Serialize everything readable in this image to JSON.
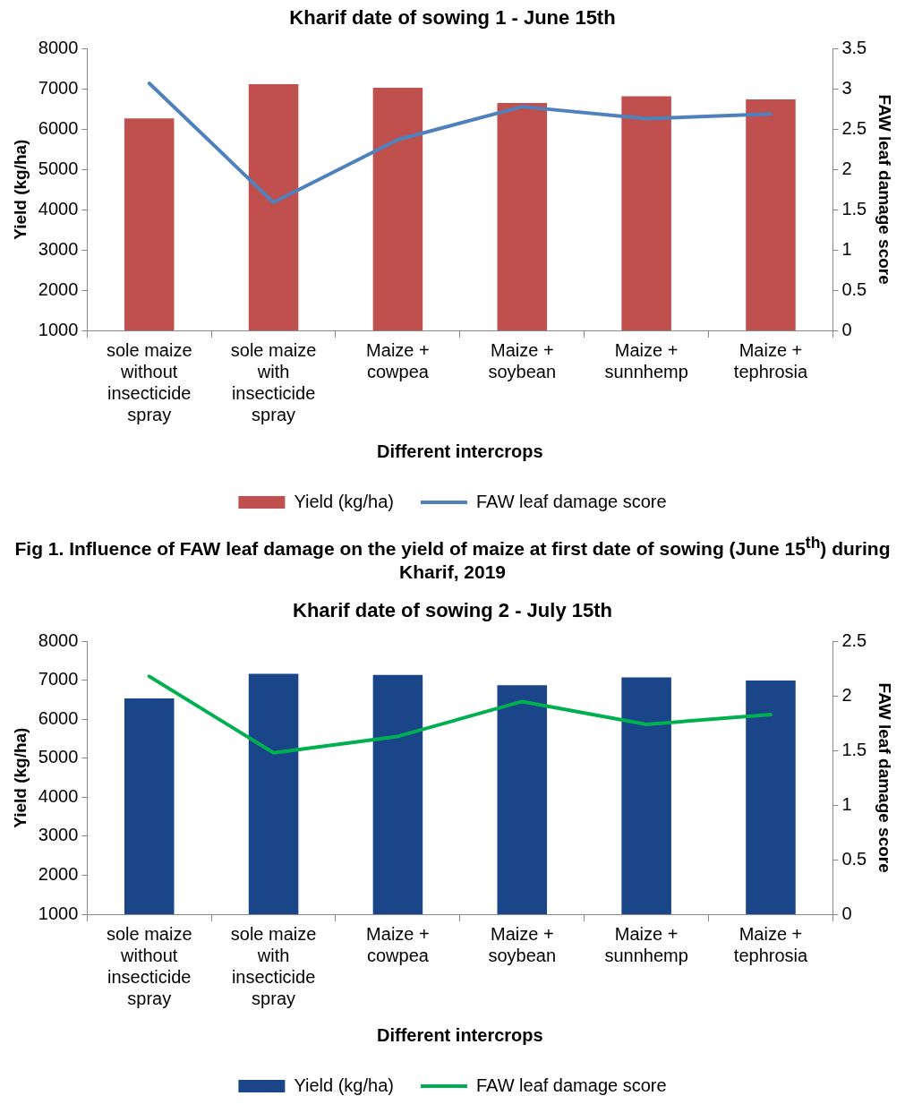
{
  "chart_data": [
    {
      "type": "bar",
      "title": "Kharif date of sowing 1 - June 15th",
      "xlabel": "Different intercrops",
      "ylabel": "Yield (kg/ha)",
      "y2label": "FAW leaf damage score",
      "categories": [
        "sole maize without insecticide spray",
        "sole maize with insecticide spray",
        "Maize + cowpea",
        "Maize + soybean",
        "Maize + sunnhemp",
        "Maize + tephrosia"
      ],
      "series": [
        {
          "name": "Yield (kg/ha)",
          "color": "#c0504d",
          "values": [
            6270,
            7120,
            7030,
            6650,
            6820,
            6740
          ]
        },
        {
          "name": "FAW leaf damage score",
          "type": "line",
          "axis": "y2",
          "color": "#4f81bd",
          "values": [
            3.07,
            1.59,
            2.37,
            2.78,
            2.63,
            2.69
          ]
        }
      ],
      "ylim": [
        1000,
        8000
      ],
      "yticks": [
        1000,
        2000,
        3000,
        4000,
        5000,
        6000,
        7000,
        8000
      ],
      "y2lim": [
        0,
        3.5
      ],
      "y2ticks": [
        0,
        0.5,
        1,
        1.5,
        2,
        2.5,
        3,
        3.5
      ],
      "legend": "bottom",
      "grid": false,
      "marker": "none",
      "annotations": [
        "Fig 1. Influence of FAW leaf damage on the yield of maize at first date of sowing (June 15$^{th}$) during Kharif, 2019"
      ]
    },
    {
      "type": "bar",
      "title": "Kharif date of sowing 2 - July 15th",
      "xlabel": "Different intercrops",
      "ylabel": "Yield (kg/ha)",
      "y2label": "FAW leaf damage score",
      "categories": [
        "sole maize without insecticide spray",
        "sole maize with insecticide spray",
        "Maize + cowpea",
        "Maize + soybean",
        "Maize + sunnhemp",
        "Maize + tephrosia"
      ],
      "series": [
        {
          "name": "Yield (kg/ha)",
          "color": "#1a4588",
          "values": [
            6540,
            7170,
            7140,
            6880,
            7080,
            7000
          ]
        },
        {
          "name": "FAW leaf damage score",
          "type": "line",
          "axis": "y2",
          "color": "#00b050",
          "values": [
            2.18,
            1.48,
            1.63,
            1.95,
            1.74,
            1.83
          ]
        }
      ],
      "ylim": [
        1000,
        8000
      ],
      "yticks": [
        1000,
        2000,
        3000,
        4000,
        5000,
        6000,
        7000,
        8000
      ],
      "y2lim": [
        0,
        2.5
      ],
      "y2ticks": [
        0,
        0.5,
        1,
        1.5,
        2,
        2.5
      ],
      "legend": "bottom",
      "grid": false,
      "marker": "none"
    }
  ]
}
